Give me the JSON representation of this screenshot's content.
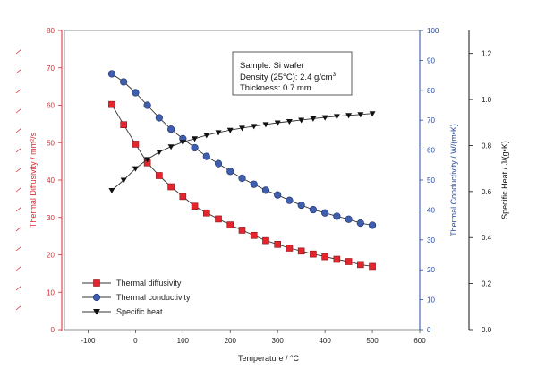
{
  "chart_data": {
    "type": "scatter",
    "xlabel": "Temperature / °C",
    "xlim": [
      -150,
      600
    ],
    "xticks": [
      -100,
      0,
      100,
      200,
      300,
      400,
      500,
      600
    ],
    "axes": {
      "left": {
        "label": "Thermal Diffusivity / mm²/s",
        "range": [
          0,
          80
        ],
        "ticks": [
          0,
          10,
          20,
          30,
          40,
          50,
          60,
          70,
          80
        ],
        "color": "#e3262e"
      },
      "right1": {
        "label": "Thermal Conductivity / W/(m•K)",
        "range": [
          0,
          100
        ],
        "ticks": [
          0,
          10,
          20,
          30,
          40,
          50,
          60,
          70,
          80,
          90,
          100
        ],
        "color": "#2a4a9a"
      },
      "right2": {
        "label": "Specific Heat / J/(g•K)",
        "range": [
          0,
          1.3
        ],
        "ticks": [
          "0.0",
          "0.2",
          "0.4",
          "0.6",
          "0.8",
          "1.0",
          "1.2"
        ],
        "color": "#111111"
      }
    },
    "annotation": {
      "line1": "Sample: Si wafer",
      "line2_prefix": "Density (25°C): 2.4 g/cm",
      "line2_sup": "3",
      "line3": "Thickness: 0.7 mm"
    },
    "series": [
      {
        "name": "Thermal diffusivity",
        "axis": "left",
        "marker": "square",
        "color": "#e3262e",
        "x": [
          -50,
          -25,
          0,
          25,
          50,
          75,
          100,
          125,
          150,
          175,
          200,
          225,
          250,
          275,
          300,
          325,
          350,
          375,
          400,
          425,
          450,
          475,
          500
        ],
        "y": [
          60.2,
          54.8,
          49.6,
          44.6,
          41.2,
          38.2,
          35.6,
          33.0,
          31.2,
          29.6,
          28.0,
          26.6,
          25.2,
          23.8,
          22.8,
          21.8,
          21.0,
          20.2,
          19.5,
          18.8,
          18.2,
          17.4,
          16.9
        ]
      },
      {
        "name": "Thermal conductivity",
        "axis": "right1",
        "marker": "circle",
        "color": "#2a4a9a",
        "x": [
          -50,
          -25,
          0,
          25,
          50,
          75,
          100,
          125,
          150,
          175,
          200,
          225,
          250,
          275,
          300,
          325,
          350,
          375,
          400,
          425,
          450,
          475,
          500
        ],
        "y": [
          85.5,
          82.8,
          79.2,
          75.0,
          70.8,
          67.0,
          63.8,
          60.8,
          57.9,
          55.5,
          52.9,
          50.6,
          48.6,
          46.6,
          45.0,
          43.2,
          41.6,
          40.1,
          39.0,
          37.9,
          36.9,
          35.6,
          34.9
        ]
      },
      {
        "name": "Specific heat",
        "axis": "right2",
        "marker": "triangle-down",
        "color": "#111111",
        "x": [
          -50,
          -25,
          0,
          25,
          50,
          75,
          100,
          125,
          150,
          175,
          200,
          225,
          250,
          275,
          300,
          325,
          350,
          375,
          400,
          425,
          450,
          475,
          500
        ],
        "y": [
          0.605,
          0.65,
          0.7,
          0.74,
          0.772,
          0.795,
          0.815,
          0.83,
          0.845,
          0.857,
          0.867,
          0.876,
          0.884,
          0.892,
          0.899,
          0.905,
          0.911,
          0.917,
          0.922,
          0.927,
          0.931,
          0.935,
          0.939
        ]
      }
    ],
    "legend_position": "bottom-left"
  }
}
